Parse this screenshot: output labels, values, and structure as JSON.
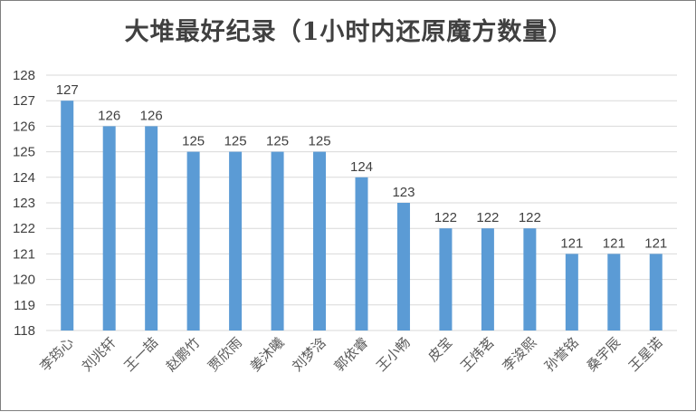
{
  "chart_data": {
    "type": "bar",
    "title": "大堆最好纪录（1小时内还原魔方数量）",
    "categories": [
      "李筠心",
      "刘兆轩",
      "王一喆",
      "赵鹏竹",
      "贾欣雨",
      "姜沐曦",
      "刘梦浛",
      "郭依睿",
      "王小畅",
      "皮宝",
      "王炜茗",
      "李浚熙",
      "孙誉铭",
      "桑宇辰",
      "王星诺"
    ],
    "values": [
      127,
      126,
      126,
      125,
      125,
      125,
      125,
      124,
      123,
      122,
      122,
      122,
      121,
      121,
      121
    ],
    "ylim": [
      118,
      128
    ],
    "yticks": [
      118,
      119,
      120,
      121,
      122,
      123,
      124,
      125,
      126,
      127,
      128
    ],
    "grid": true,
    "legend": "none",
    "bar_color": "#5b9bd5"
  }
}
